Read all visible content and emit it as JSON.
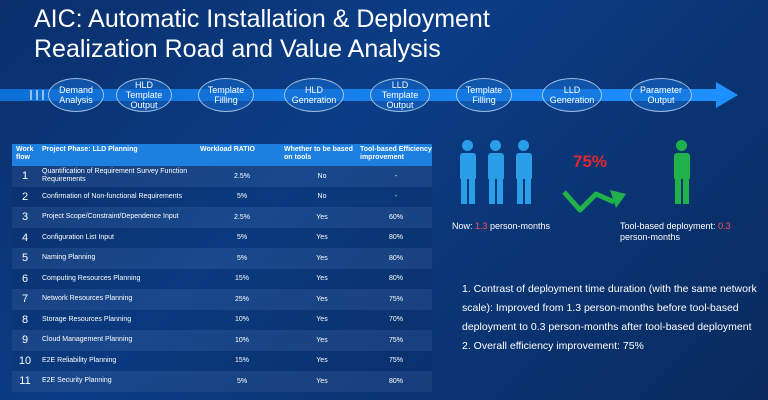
{
  "title": {
    "line1": "AIC: Automatic Installation & Deployment",
    "line2": "Realization Road and Value Analysis"
  },
  "roadmap": {
    "steps": [
      {
        "line1": "Demand",
        "line2": "Analysis",
        "line3": ""
      },
      {
        "line1": "HLD",
        "line2": "Template",
        "line3": "Output"
      },
      {
        "line1": "Template",
        "line2": "Filling",
        "line3": ""
      },
      {
        "line1": "HLD",
        "line2": "Generation",
        "line3": ""
      },
      {
        "line1": "LLD",
        "line2": "Template",
        "line3": "Output"
      },
      {
        "line1": "Template",
        "line2": "Filling",
        "line3": ""
      },
      {
        "line1": "LLD",
        "line2": "Generation",
        "line3": ""
      },
      {
        "line1": "Parameter",
        "line2": "Output",
        "line3": ""
      }
    ]
  },
  "table": {
    "headers": {
      "workflow": "Work flow",
      "phase": "Project Phase: LLD Planning",
      "ratio": "Workload RATIO",
      "tool": "Whether to be based on tools",
      "eff": "Tool-based Efficiency improvement"
    },
    "rows": [
      {
        "num": "1",
        "phase": "Quantification of Requirement Survey Function Requirements",
        "ratio": "2.5%",
        "tool": "No",
        "eff": "-"
      },
      {
        "num": "2",
        "phase": "Confirmation of Non-functional Requirements",
        "ratio": "5%",
        "tool": "No",
        "eff": "-"
      },
      {
        "num": "3",
        "phase": "Project Scope/Constraint/Dependence Input",
        "ratio": "2.5%",
        "tool": "Yes",
        "eff": "60%"
      },
      {
        "num": "4",
        "phase": "Configuration List Input",
        "ratio": "5%",
        "tool": "Yes",
        "eff": "80%"
      },
      {
        "num": "5",
        "phase": "Naming Planning",
        "ratio": "5%",
        "tool": "Yes",
        "eff": "80%"
      },
      {
        "num": "6",
        "phase": "Computing Resources Planning",
        "ratio": "15%",
        "tool": "Yes",
        "eff": "80%"
      },
      {
        "num": "7",
        "phase": "Network Resources Planning",
        "ratio": "25%",
        "tool": "Yes",
        "eff": "75%"
      },
      {
        "num": "8",
        "phase": "Storage Resources Planning",
        "ratio": "10%",
        "tool": "Yes",
        "eff": "70%"
      },
      {
        "num": "9",
        "phase": "Cloud Management Planning",
        "ratio": "10%",
        "tool": "Yes",
        "eff": "75%"
      },
      {
        "num": "10",
        "phase": "E2E Reliability Planning",
        "ratio": "15%",
        "tool": "Yes",
        "eff": "75%"
      },
      {
        "num": "11",
        "phase": "E2E Security Planning",
        "ratio": "5%",
        "tool": "Yes",
        "eff": "80%"
      }
    ]
  },
  "summary": {
    "percent": "75%",
    "now_prefix": "Now: ",
    "now_value": "1.3",
    "now_suffix": " person-months",
    "tool_prefix": "Tool-based deployment: ",
    "tool_value": "0.3",
    "tool_suffix": "person-months",
    "note1": "1. Contrast of deployment time duration (with the same network scale): Improved from 1.3 person-months before tool-based deployment to 0.3 person-months after tool-based deployment",
    "note2": "2. Overall efficiency improvement: 75%"
  },
  "colors": {
    "accent_blue": "#1d7fe0",
    "people_before": "#2a9ee8",
    "people_after": "#21b14a",
    "highlight": "#e0262e"
  }
}
